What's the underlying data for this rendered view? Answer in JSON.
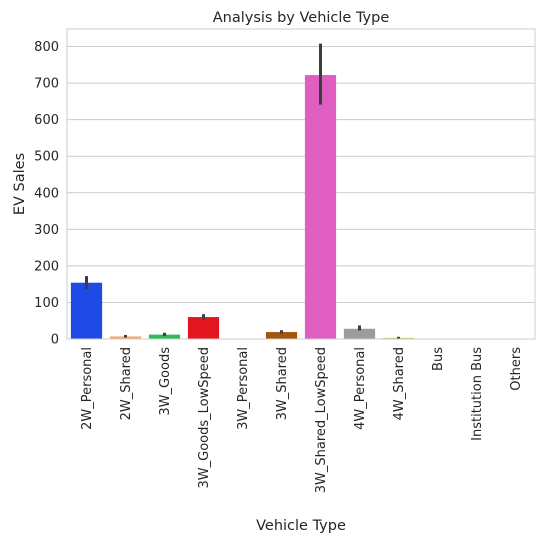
{
  "chart_data": {
    "type": "bar",
    "title": "Analysis by Vehicle Type",
    "xlabel": "Vehicle Type",
    "ylabel": "EV Sales",
    "categories": [
      "2W_Personal",
      "2W_Shared",
      "3W_Goods",
      "3W_Goods_LowSpeed",
      "3W_Personal",
      "3W_Shared",
      "3W_Shared_LowSpeed",
      "4W_Personal",
      "4W_Shared",
      "Bus",
      "Institution Bus",
      "Others"
    ],
    "values": [
      154,
      7,
      12,
      60,
      0,
      19,
      722,
      28,
      3,
      1,
      0,
      0
    ],
    "error_low": [
      137,
      4,
      8,
      53,
      0,
      15,
      641,
      23,
      1,
      0,
      0,
      0
    ],
    "error_high": [
      172,
      11,
      17,
      68,
      0,
      24,
      808,
      37,
      6,
      1,
      0,
      0
    ],
    "colors": [
      "#1f4ae6",
      "#f7a86a",
      "#2ebd5a",
      "#e3161f",
      "#8b6bc7",
      "#a5550e",
      "#e15ec1",
      "#9c9c9c",
      "#c9c25a",
      "#3fb7d1",
      "#5580e8",
      "#f3a34f"
    ],
    "yticks": [
      0,
      100,
      200,
      300,
      400,
      500,
      600,
      700,
      800
    ],
    "ylim": [
      0,
      848
    ],
    "grid": "y"
  }
}
